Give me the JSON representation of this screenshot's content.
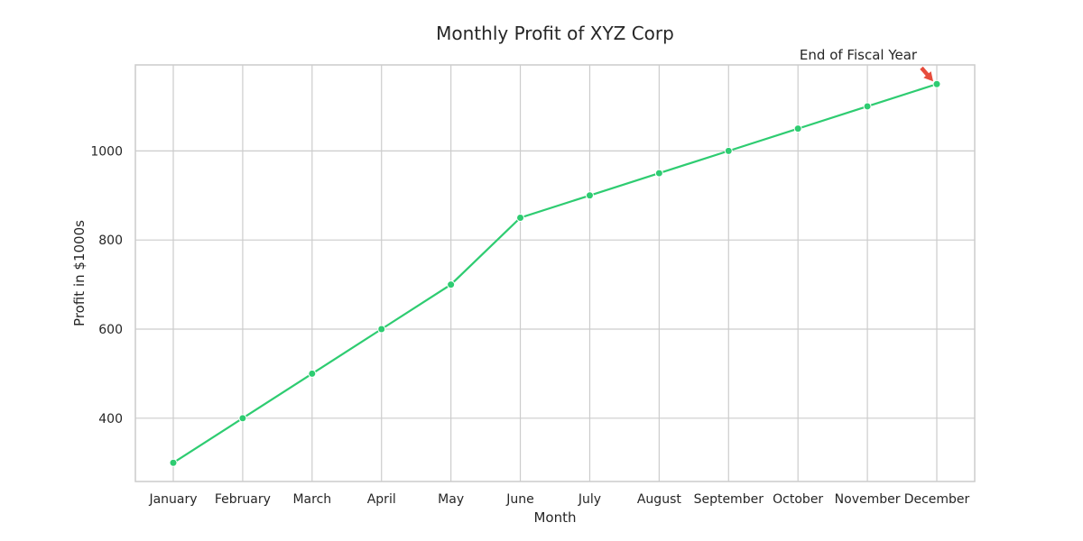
{
  "chart_data": {
    "type": "line",
    "title": "Monthly Profit of XYZ Corp",
    "xlabel": "Month",
    "ylabel": "Profit in $1000s",
    "categories": [
      "January",
      "February",
      "March",
      "April",
      "May",
      "June",
      "July",
      "August",
      "September",
      "October",
      "November",
      "December"
    ],
    "values": [
      300,
      400,
      500,
      600,
      700,
      850,
      900,
      950,
      1000,
      1050,
      1100,
      1150
    ],
    "ylim": [
      258,
      1193
    ],
    "yticks": [
      400,
      600,
      800,
      1000
    ],
    "grid": true,
    "line_color": "#2ecc71",
    "annotation": {
      "text": "End of Fiscal Year",
      "target_category": "December",
      "target_value": 1150,
      "arrow_color": "#e74c3c"
    }
  }
}
